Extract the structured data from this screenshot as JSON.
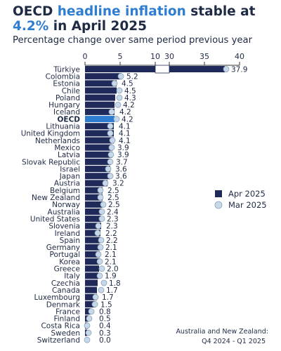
{
  "header": {
    "title_part1": "OECD ",
    "title_highlight1": "headline inflation",
    "title_part2": " stable at ",
    "title_highlight2": "4.2%",
    "title_part3": " in April 2025",
    "subtitle": "Percentage change over same period previous year"
  },
  "legend": {
    "apr_label": "Apr 2025",
    "mar_label": "Mar 2025"
  },
  "footnote": {
    "line1": "Australia and New Zealand:",
    "line2": "Q4 2024 - Q1 2025"
  },
  "colors": {
    "apr_bar": "#1f2a5a",
    "oecd_bar": "#2e7dd1",
    "mar_dot": "#c7d8e8",
    "mar_dot_stroke": "#8aa2b8",
    "title_highlight": "#2e7dd1",
    "text": "#1f2a44"
  },
  "chart_data": {
    "type": "bar",
    "orientation": "horizontal",
    "highlight_category": "OECD",
    "x_axis_broken": true,
    "x_segments": [
      [
        0,
        10
      ],
      [
        30,
        40
      ]
    ],
    "x_ticks": [
      "0",
      "5",
      "10",
      "30",
      "35",
      "40"
    ],
    "categories": [
      "Türkiye",
      "Colombia",
      "Estonia",
      "Chile",
      "Poland",
      "Hungary",
      "Iceland",
      "OECD",
      "Lithuania",
      "United Kingdom",
      "Netherlands",
      "Mexico",
      "Latvia",
      "Slovak Republic",
      "Israel",
      "Japan",
      "Austria",
      "Belgium",
      "New Zealand",
      "Norway",
      "Australia",
      "United States",
      "Slovenia",
      "Ireland",
      "Spain",
      "Germany",
      "Portugal",
      "Korea",
      "Greece",
      "Italy",
      "Czechia",
      "Canada",
      "Luxembourg",
      "Denmark",
      "France",
      "Finland",
      "Costa Rica",
      "Sweden",
      "Switzerland"
    ],
    "value_labels": [
      "37.9",
      "5.2",
      "4.5",
      "4.5",
      "4.3",
      "4.2",
      "4.2",
      "4.2",
      "4.1",
      "4.1",
      "4.1",
      "3.9",
      "3.9",
      "3.7",
      "3.6",
      "3.6",
      "3.2",
      "2.5",
      "2.5",
      "2.5",
      "2.4",
      "2.3",
      "2.3",
      "2.2",
      "2.2",
      "2.1",
      "2.1",
      "2.1",
      "2.0",
      "1.9",
      "1.8",
      "1.7",
      "1.7",
      "1.5",
      "0.8",
      "0.5",
      "0.4",
      "0.3",
      "0.0"
    ],
    "series": [
      {
        "name": "Apr 2025",
        "values": [
          37.9,
          5.2,
          4.5,
          4.5,
          4.3,
          4.2,
          4.2,
          4.2,
          4.1,
          4.1,
          4.1,
          3.9,
          3.9,
          3.7,
          3.6,
          3.6,
          3.2,
          2.5,
          2.5,
          2.5,
          2.4,
          2.3,
          2.3,
          2.2,
          2.2,
          2.1,
          2.1,
          2.1,
          2.0,
          1.9,
          1.8,
          1.7,
          1.7,
          1.5,
          0.8,
          0.5,
          0.4,
          0.3,
          0.0
        ]
      },
      {
        "name": "Mar 2025",
        "values": [
          38.1,
          5.1,
          4.2,
          4.9,
          4.9,
          4.7,
          3.8,
          4.5,
          3.6,
          3.6,
          3.9,
          3.8,
          3.7,
          3.6,
          3.3,
          3.6,
          2.9,
          2.2,
          2.2,
          2.6,
          2.4,
          2.4,
          1.9,
          1.8,
          2.3,
          2.2,
          1.9,
          2.1,
          2.4,
          2.1,
          2.7,
          2.3,
          1.5,
          1.4,
          0.9,
          0.6,
          0.3,
          0.5,
          0.3
        ]
      }
    ]
  }
}
